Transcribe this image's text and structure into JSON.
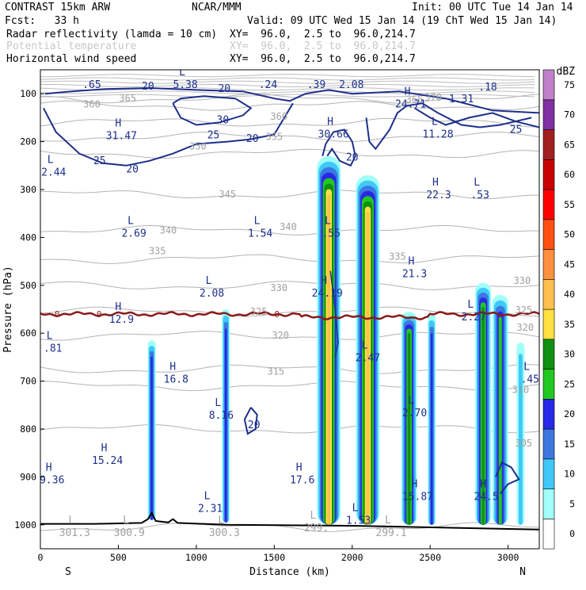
{
  "header": {
    "left_line1": "CONTRAST 15km ARW",
    "center_line1": "NCAR/MMM",
    "right_line1": "Init: 00 UTC Tue 14 Jan 14",
    "left_line2": "Fcst:   33 h",
    "right_line2": "Valid: 09 UTC Wed 15 Jan 14 (19 ChT Wed 15 Jan 14)",
    "fields": [
      {
        "name": "Radar reflectivity (lamda = 10 cm)",
        "xy": "XY=  96.0,  2.5 to  96.0,214.7",
        "color": "#000000"
      },
      {
        "name": "Potential temperature",
        "xy": "XY=  96.0,  2.5 to  96.0,214.7",
        "color": "#c8c8c8"
      },
      {
        "name": "Horizontal wind speed",
        "xy": "XY=  96.0,  2.5 to  96.0,214.7",
        "color": "#000000"
      }
    ]
  },
  "chart_data": {
    "type": "heatmap",
    "description_kind": "vertical cross-section",
    "xlabel": "Distance (km)",
    "ylabel": "Pressure (hPa)",
    "xlim": [
      0,
      3200
    ],
    "ylim": [
      1050,
      50
    ],
    "x_ticks": [
      0,
      500,
      1000,
      1500,
      2000,
      2500,
      3000
    ],
    "y_ticks": [
      100,
      200,
      300,
      400,
      500,
      600,
      700,
      800,
      900,
      1000
    ],
    "x_end_labels": {
      "left": "S",
      "right": "N"
    },
    "colorbar": {
      "unit": "dBZ",
      "levels": [
        0,
        5,
        10,
        15,
        20,
        25,
        30,
        35,
        40,
        45,
        50,
        55,
        60,
        65,
        70,
        75
      ],
      "colors": [
        "#ffffff",
        "#a0fff8",
        "#40c8f8",
        "#3c78e0",
        "#2828e8",
        "#20c820",
        "#109010",
        "#ffe040",
        "#ffc050",
        "#ff9040",
        "#ff5010",
        "#ff0000",
        "#c80000",
        "#a02020",
        "#8030a0",
        "#c080c8"
      ]
    },
    "reflectivity_columns": [
      {
        "x": 714,
        "top_p": 615,
        "bottom_p": 990,
        "max_dbz": 20
      },
      {
        "x": 1190,
        "top_p": 550,
        "bottom_p": 995,
        "max_dbz": 20
      },
      {
        "x": 1850,
        "top_p": 230,
        "bottom_p": 1000,
        "max_dbz": 40
      },
      {
        "x": 2100,
        "top_p": 270,
        "bottom_p": 1000,
        "max_dbz": 40
      },
      {
        "x": 2365,
        "top_p": 555,
        "bottom_p": 1000,
        "max_dbz": 30
      },
      {
        "x": 2510,
        "top_p": 560,
        "bottom_p": 1000,
        "max_dbz": 20
      },
      {
        "x": 2840,
        "top_p": 495,
        "bottom_p": 1000,
        "max_dbz": 30
      },
      {
        "x": 2950,
        "top_p": 520,
        "bottom_p": 1000,
        "max_dbz": 25
      },
      {
        "x": 3080,
        "top_p": 620,
        "bottom_p": 1000,
        "max_dbz": 10
      }
    ],
    "theta_contours": [
      {
        "value": 300,
        "p": 1005
      },
      {
        "value": 305,
        "p": 800
      },
      {
        "value": 310,
        "p": 710
      },
      {
        "value": 315,
        "p": 675
      },
      {
        "value": 320,
        "p": 605
      },
      {
        "value": 325,
        "p": 555
      },
      {
        "value": 330,
        "p": 500
      },
      {
        "value": 335,
        "p": 445
      },
      {
        "value": 340,
        "p": 385
      },
      {
        "value": 345,
        "p": 310
      },
      {
        "value": 350,
        "p": 225
      },
      {
        "value": 355,
        "p": 190
      },
      {
        "value": 360,
        "p": 160
      },
      {
        "value": 365,
        "p": 125
      },
      {
        "value": 370,
        "p": 110
      }
    ],
    "theta_labels": [
      {
        "text": "365",
        "x": 560,
        "p": 110
      },
      {
        "text": "360",
        "x": 1530,
        "p": 148
      },
      {
        "text": "355",
        "x": 1500,
        "p": 190
      },
      {
        "text": "350",
        "x": 1010,
        "p": 210
      },
      {
        "text": "345",
        "x": 1200,
        "p": 310
      },
      {
        "text": "340",
        "x": 820,
        "p": 385
      },
      {
        "text": "340",
        "x": 1590,
        "p": 378
      },
      {
        "text": "335",
        "x": 750,
        "p": 428
      },
      {
        "text": "335",
        "x": 2290,
        "p": 440
      },
      {
        "text": "330",
        "x": 1530,
        "p": 505
      },
      {
        "text": "330",
        "x": 3090,
        "p": 490
      },
      {
        "text": "325",
        "x": 1400,
        "p": 555
      },
      {
        "text": "325",
        "x": 3100,
        "p": 552
      },
      {
        "text": "320",
        "x": 1540,
        "p": 605
      },
      {
        "text": "320",
        "x": 3110,
        "p": 588
      },
      {
        "text": "315",
        "x": 1510,
        "p": 680
      },
      {
        "text": "310",
        "x": 3080,
        "p": 718
      },
      {
        "text": "305",
        "x": 3100,
        "p": 830
      },
      {
        "text": "365",
        "x": 2400,
        "p": 112
      },
      {
        "text": "370",
        "x": 2520,
        "p": 108
      },
      {
        "text": "360",
        "x": 330,
        "p": 122
      }
    ],
    "theta_zero_line": {
      "label": "0",
      "p": 560,
      "color": "#8b1a1a"
    },
    "wind_contours": [
      20,
      25,
      30
    ],
    "wind_labels": [
      {
        "text": "20",
        "x": 690,
        "p": 85
      },
      {
        "text": "20",
        "x": 1180,
        "p": 90
      },
      {
        "text": "30",
        "x": 1170,
        "p": 155
      },
      {
        "text": "25",
        "x": 1110,
        "p": 187
      },
      {
        "text": "20",
        "x": 1360,
        "p": 194
      },
      {
        "text": "25",
        "x": 380,
        "p": 240
      },
      {
        "text": "20",
        "x": 590,
        "p": 258
      },
      {
        "text": "20",
        "x": 2000,
        "p": 233
      },
      {
        "text": "25",
        "x": 3050,
        "p": 175
      },
      {
        "text": "20",
        "x": 1370,
        "p": 792
      }
    ],
    "extrema": [
      {
        "type": "H",
        "value": "31.47",
        "x": 520,
        "p": 182
      },
      {
        "type": "L",
        "value": "2.44",
        "x": 85,
        "p": 258
      },
      {
        "type": "L",
        "value": "5.38",
        "x": 930,
        "p": 75
      },
      {
        "type": "",
        "value": ".65",
        "x": 330,
        "p": 75
      },
      {
        "type": "",
        "value": ".24",
        "x": 1460,
        "p": 75
      },
      {
        "type": "",
        "value": ".39",
        "x": 1770,
        "p": 75
      },
      {
        "type": "",
        "value": "2.08",
        "x": 1995,
        "p": 75
      },
      {
        "type": "H",
        "value": "30.66",
        "x": 1880,
        "p": 178
      },
      {
        "type": "H",
        "value": "24.71",
        "x": 2375,
        "p": 115
      },
      {
        "type": "",
        "value": "1.31",
        "x": 2700,
        "p": 105
      },
      {
        "type": "",
        "value": ".18",
        "x": 2870,
        "p": 80
      },
      {
        "type": "L",
        "value": "11.28",
        "x": 2550,
        "p": 178
      },
      {
        "type": "H",
        "value": "22.3",
        "x": 2555,
        "p": 305
      },
      {
        "type": "L",
        "value": ".53",
        "x": 2820,
        "p": 305
      },
      {
        "type": "L",
        "value": "2.69",
        "x": 600,
        "p": 385
      },
      {
        "type": "L",
        "value": "1.54",
        "x": 1410,
        "p": 385
      },
      {
        "type": "L",
        "value": ".55",
        "x": 1865,
        "p": 385
      },
      {
        "type": "H",
        "value": "21.3",
        "x": 2400,
        "p": 470
      },
      {
        "type": "L",
        "value": "2.08",
        "x": 1100,
        "p": 510
      },
      {
        "type": "H",
        "value": "24.19",
        "x": 1840,
        "p": 510
      },
      {
        "type": "H",
        "value": "12.9",
        "x": 520,
        "p": 565
      },
      {
        "type": "L",
        "value": ".81",
        "x": 80,
        "p": 625
      },
      {
        "type": "L",
        "value": "2.47",
        "x": 2100,
        "p": 645
      },
      {
        "type": "L",
        "value": "2.27",
        "x": 2780,
        "p": 560
      },
      {
        "type": "H",
        "value": "16.8",
        "x": 870,
        "p": 690
      },
      {
        "type": "L",
        "value": "8.16",
        "x": 1160,
        "p": 765
      },
      {
        "type": "L",
        "value": "2.70",
        "x": 2400,
        "p": 760
      },
      {
        "type": "L",
        "value": ".45",
        "x": 3140,
        "p": 690
      },
      {
        "type": "H",
        "value": "15.24",
        "x": 430,
        "p": 860
      },
      {
        "type": "H",
        "value": "9.36",
        "x": 75,
        "p": 900
      },
      {
        "type": "H",
        "value": "17.6",
        "x": 1680,
        "p": 900
      },
      {
        "type": "H",
        "value": "15.87",
        "x": 2420,
        "p": 935
      },
      {
        "type": "H",
        "value": "24.5",
        "x": 2860,
        "p": 935
      },
      {
        "type": "L",
        "value": "2.31",
        "x": 1090,
        "p": 960
      },
      {
        "type": "L",
        "value": "1.53",
        "x": 2040,
        "p": 985
      },
      {
        "type": "L",
        "value": "301.3",
        "x": 220,
        "p": 1010
      },
      {
        "type": "L",
        "value": "300.9",
        "x": 570,
        "p": 1010
      },
      {
        "type": "L",
        "value": "300.3",
        "x": 1180,
        "p": 1010
      },
      {
        "type": "L",
        "value": "299.",
        "x": 1770,
        "p": 1000
      },
      {
        "type": "L",
        "value": "299.1",
        "x": 2250,
        "p": 1010
      }
    ]
  }
}
